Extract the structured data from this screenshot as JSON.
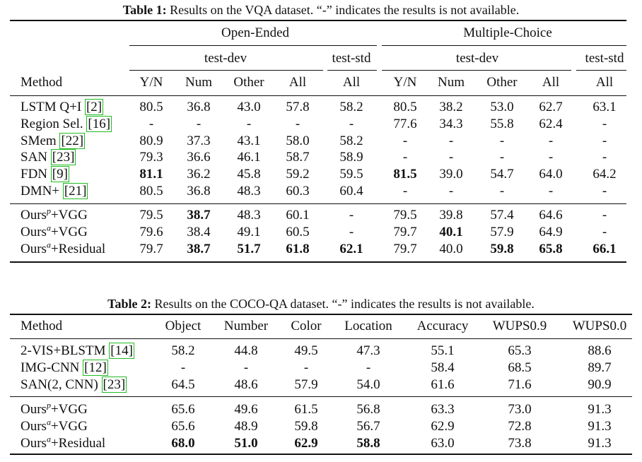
{
  "table1": {
    "caption_label": "Table 1:",
    "caption_text": "Results on the VQA dataset. “-” indicates the results is not available.",
    "group_headers": [
      "Open-Ended",
      "Multiple-Choice"
    ],
    "subgroup_headers": [
      "test-dev",
      "test-std",
      "test-dev",
      "test-std"
    ],
    "method_header": "Method",
    "columns": [
      "Y/N",
      "Num",
      "Other",
      "All",
      "All",
      "Y/N",
      "Num",
      "Other",
      "All",
      "All"
    ],
    "rows": [
      {
        "method": "LSTM Q+I ",
        "cite": "[2]",
        "values": [
          "80.5",
          "36.8",
          "43.0",
          "57.8",
          "58.2",
          "80.5",
          "38.2",
          "53.0",
          "62.7",
          "63.1"
        ],
        "bold": []
      },
      {
        "method": "Region Sel. ",
        "cite": "[16]",
        "values": [
          "-",
          "-",
          "-",
          "-",
          "-",
          "77.6",
          "34.3",
          "55.8",
          "62.4",
          "-"
        ],
        "bold": []
      },
      {
        "method": "SMem ",
        "cite": "[22]",
        "values": [
          "80.9",
          "37.3",
          "43.1",
          "58.0",
          "58.2",
          "-",
          "-",
          "-",
          "-",
          "-"
        ],
        "bold": []
      },
      {
        "method": "SAN ",
        "cite": "[23]",
        "values": [
          "79.3",
          "36.6",
          "46.1",
          "58.7",
          "58.9",
          "-",
          "-",
          "-",
          "-",
          "-"
        ],
        "bold": []
      },
      {
        "method": "FDN ",
        "cite": "[9]",
        "values": [
          "81.1",
          "36.2",
          "45.8",
          "59.2",
          "59.5",
          "81.5",
          "39.0",
          "54.7",
          "64.0",
          "64.2"
        ],
        "bold": [
          0,
          5
        ]
      },
      {
        "method": "DMN+ ",
        "cite": "[21]",
        "values": [
          "80.5",
          "36.8",
          "48.3",
          "60.3",
          "60.4",
          "-",
          "-",
          "-",
          "-",
          "-"
        ],
        "bold": []
      },
      {
        "method": "Ours",
        "sup": "p",
        "suffix": "+VGG",
        "values": [
          "79.5",
          "38.7",
          "48.3",
          "60.1",
          "-",
          "79.5",
          "39.8",
          "57.4",
          "64.6",
          "-"
        ],
        "bold": [
          1
        ]
      },
      {
        "method": "Ours",
        "sup": "a",
        "suffix": "+VGG",
        "values": [
          "79.6",
          "38.4",
          "49.1",
          "60.5",
          "-",
          "79.7",
          "40.1",
          "57.9",
          "64.9",
          "-"
        ],
        "bold": [
          6
        ]
      },
      {
        "method": "Ours",
        "sup": "a",
        "suffix": "+Residual",
        "values": [
          "79.7",
          "38.7",
          "51.7",
          "61.8",
          "62.1",
          "79.7",
          "40.0",
          "59.8",
          "65.8",
          "66.1"
        ],
        "bold": [
          1,
          2,
          3,
          4,
          7,
          8,
          9
        ]
      }
    ]
  },
  "table2": {
    "caption_label": "Table 2:",
    "caption_text": "Results on the COCO-QA dataset. “-” indicates the results is not available.",
    "method_header": "Method",
    "columns": [
      "Object",
      "Number",
      "Color",
      "Location",
      "Accuracy",
      "WUPS0.9",
      "WUPS0.0"
    ],
    "rows": [
      {
        "method": "2-VIS+BLSTM ",
        "cite": "[14]",
        "values": [
          "58.2",
          "44.8",
          "49.5",
          "47.3",
          "55.1",
          "65.3",
          "88.6"
        ],
        "bold": []
      },
      {
        "method": "IMG-CNN ",
        "cite": "[12]",
        "values": [
          "-",
          "-",
          "-",
          "-",
          "58.4",
          "68.5",
          "89.7"
        ],
        "bold": []
      },
      {
        "method": "SAN(2, CNN) ",
        "cite": "[23]",
        "values": [
          "64.5",
          "48.6",
          "57.9",
          "54.0",
          "61.6",
          "71.6",
          "90.9"
        ],
        "bold": []
      },
      {
        "method": "Ours",
        "sup": "p",
        "suffix": "+VGG",
        "values": [
          "65.6",
          "49.6",
          "61.5",
          "56.8",
          "63.3",
          "73.0",
          "91.3"
        ],
        "bold": []
      },
      {
        "method": "Ours",
        "sup": "a",
        "suffix": "+VGG",
        "values": [
          "65.6",
          "48.9",
          "59.8",
          "56.7",
          "62.9",
          "72.8",
          "91.3"
        ],
        "bold": []
      },
      {
        "method": "Ours",
        "sup": "a",
        "suffix": "+Residual",
        "values": [
          "68.0",
          "51.0",
          "62.9",
          "58.8",
          "63.0",
          "73.8",
          "91.3"
        ],
        "bold": [
          0,
          1,
          2,
          3
        ]
      }
    ]
  }
}
